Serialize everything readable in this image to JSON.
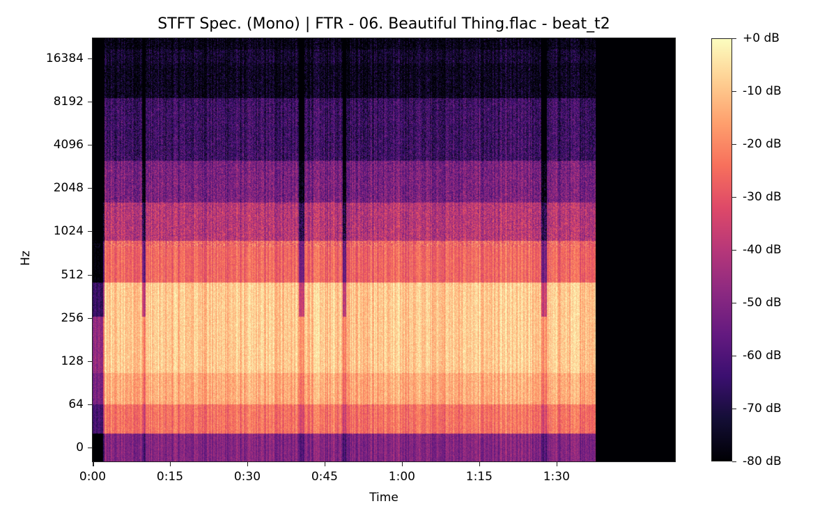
{
  "chart_data": {
    "type": "heatmap",
    "title": "STFT Spec. (Mono) | FTR - 06. Beautiful Thing.flac - beat_t2",
    "xlabel": "Time",
    "ylabel": "Hz",
    "x_ticks": [
      {
        "label": "0:00",
        "seconds": 0
      },
      {
        "label": "0:15",
        "seconds": 15
      },
      {
        "label": "0:30",
        "seconds": 30
      },
      {
        "label": "0:45",
        "seconds": 45
      },
      {
        "label": "1:00",
        "seconds": 60
      },
      {
        "label": "1:15",
        "seconds": 75
      },
      {
        "label": "1:30",
        "seconds": 90
      }
    ],
    "x_range_seconds": [
      0,
      113
    ],
    "audio_end_seconds": 97.5,
    "y_scale": "log2",
    "y_ticks": [
      {
        "label": "16384",
        "hz": 16384
      },
      {
        "label": "8192",
        "hz": 8192
      },
      {
        "label": "4096",
        "hz": 4096
      },
      {
        "label": "2048",
        "hz": 2048
      },
      {
        "label": "1024",
        "hz": 1024
      },
      {
        "label": "512",
        "hz": 512
      },
      {
        "label": "256",
        "hz": 256
      },
      {
        "label": "128",
        "hz": 128
      },
      {
        "label": "64",
        "hz": 64
      },
      {
        "label": "0",
        "hz": 0
      }
    ],
    "colorbar": {
      "colormap": "magma",
      "range_db": [
        -80,
        0
      ],
      "ticks": [
        {
          "label": "+0 dB",
          "db": 0
        },
        {
          "label": "-10 dB",
          "db": -10
        },
        {
          "label": "-20 dB",
          "db": -20
        },
        {
          "label": "-30 dB",
          "db": -30
        },
        {
          "label": "-40 dB",
          "db": -40
        },
        {
          "label": "-50 dB",
          "db": -50
        },
        {
          "label": "-60 dB",
          "db": -60
        },
        {
          "label": "-70 dB",
          "db": -70
        },
        {
          "label": "-80 dB",
          "db": -80
        }
      ]
    },
    "quiet_sections_seconds": [
      [
        0,
        2.2
      ],
      [
        9.5,
        10.2
      ],
      [
        40,
        41
      ],
      [
        48.5,
        49.2
      ],
      [
        87,
        88
      ],
      [
        97.5,
        113
      ]
    ],
    "energy_profile_db_by_band": [
      {
        "band": "0-64 Hz",
        "typical_db": -48
      },
      {
        "band": "64-128 Hz",
        "typical_db": -22
      },
      {
        "band": "128-512 Hz",
        "typical_db": -10
      },
      {
        "band": "512-1024 Hz",
        "typical_db": -28
      },
      {
        "band": "1024-4096 Hz",
        "typical_db": -50
      },
      {
        "band": "4096-8192 Hz",
        "typical_db": -65
      },
      {
        "band": "above 8192 Hz",
        "typical_db": -78
      }
    ]
  }
}
